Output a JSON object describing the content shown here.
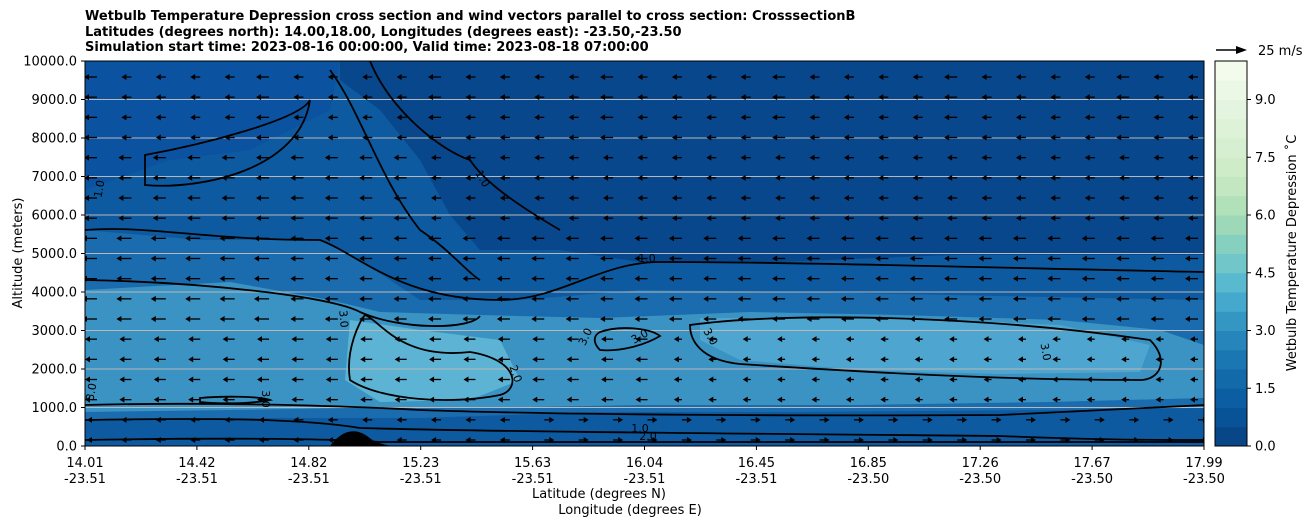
{
  "chart_data": {
    "type": "contourf",
    "title_lines": [
      "Wetbulb Temperature Depression cross section and wind vectors parallel to cross section: CrosssectionB",
      "Latitudes (degrees north): 14.00,18.00, Longitudes (degrees east): -23.50,-23.50",
      "Simulation start time: 2023-08-16 00:00:00, Valid time: 2023-08-18 07:00:00"
    ],
    "ylabel": "Altitude (meters)",
    "xlabel_1": "Latitude (degrees N)",
    "xlabel_2": "Longitude (degrees E)",
    "ylim": [
      0,
      10000
    ],
    "y_ticks": [
      0,
      1000,
      2000,
      3000,
      4000,
      5000,
      6000,
      7000,
      8000,
      9000,
      10000
    ],
    "y_tick_labels": [
      "0.0",
      "1000.0",
      "2000.0",
      "3000.0",
      "4000.0",
      "5000.0",
      "6000.0",
      "7000.0",
      "8000.0",
      "9000.0",
      "10000.0"
    ],
    "x_ticks_lat": [
      "14.01",
      "14.42",
      "14.82",
      "15.23",
      "15.63",
      "16.04",
      "16.45",
      "16.85",
      "17.26",
      "17.67",
      "17.99"
    ],
    "x_ticks_lon": [
      "-23.51",
      "-23.51",
      "-23.51",
      "-23.51",
      "-23.51",
      "-23.51",
      "-23.51",
      "-23.50",
      "-23.50",
      "-23.50",
      "-23.50"
    ],
    "grid": "horizontal",
    "colorbar": {
      "label": "Wetbulb Temperature Depression ˚C",
      "ticks": [
        "0.0",
        "1.5",
        "3.0",
        "4.5",
        "6.0",
        "7.5",
        "9.0"
      ],
      "tick_values": [
        0,
        1.5,
        3.0,
        4.5,
        6.0,
        7.5,
        9.0
      ],
      "range": [
        0,
        10
      ],
      "levels": 20,
      "colormap": "GnBu_r"
    },
    "quiver_key": {
      "label": "25 m/s"
    },
    "contour_labels": [
      "1.0",
      "1.0",
      "1.0",
      "1.0",
      "2.0",
      "3.0",
      "3.0",
      "3.0",
      "3.0",
      "3.0",
      "3.0",
      "3.0",
      "2.0"
    ],
    "colors": {
      "deep": "#08478c",
      "mid": "#1a6cae",
      "light": "#3a93c3",
      "pale": "#5cb3d3"
    }
  }
}
